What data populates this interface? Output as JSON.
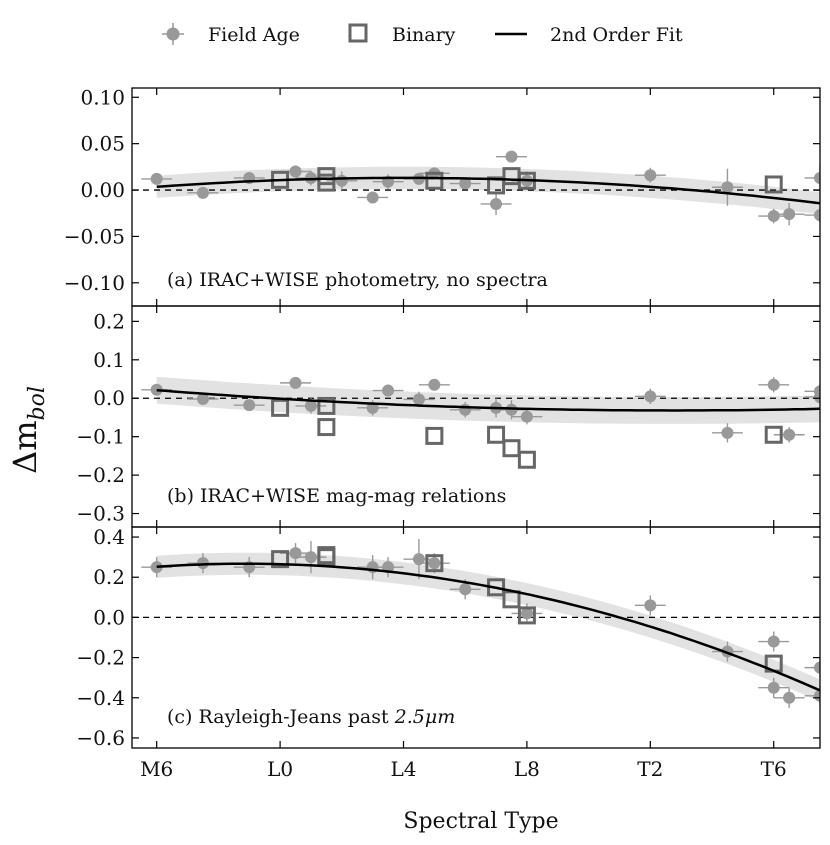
{
  "chart_data": {
    "type": "scatter",
    "legend": {
      "placement": "top",
      "entries": [
        {
          "key": "field",
          "label": "Field Age",
          "marker": "filled-circle-with-errorbars",
          "color": "#999999"
        },
        {
          "key": "binary",
          "label": "Binary",
          "marker": "open-square",
          "color": "#666666"
        },
        {
          "key": "fit",
          "label": "2nd Order Fit",
          "marker": "line",
          "color": "#000000"
        }
      ]
    },
    "xlabel": "Spectral Type",
    "ylabel": "Δm_bol",
    "ylabel_main": "Δm",
    "ylabel_sub": "bol",
    "xlim": [
      -0.8,
      21.5
    ],
    "xticks": [
      {
        "value": 0,
        "label": "M6"
      },
      {
        "value": 4,
        "label": "L0"
      },
      {
        "value": 8,
        "label": "L4"
      },
      {
        "value": 12,
        "label": "L8"
      },
      {
        "value": 16,
        "label": "T2"
      },
      {
        "value": 20,
        "label": "T6"
      }
    ],
    "colors": {
      "field": "#999999",
      "binary_edge": "#666666",
      "fit": "#000000",
      "band": "#e2e2e2",
      "zero_line": "#000000"
    },
    "panels": [
      {
        "id": "a",
        "label": "(a) IRAC+WISE photometry, no spectra",
        "ylim": [
          -0.125,
          0.11
        ],
        "yticks": [
          {
            "value": 0.1,
            "label": "0.10"
          },
          {
            "value": 0.05,
            "label": "0.05"
          },
          {
            "value": 0.0,
            "label": "0.00"
          },
          {
            "value": -0.05,
            "label": "−0.05"
          },
          {
            "value": -0.1,
            "label": "−0.10"
          }
        ],
        "fit": {
          "a": 0.0035,
          "b": 0.0024,
          "c": -0.00015,
          "band": 0.012,
          "xrange": [
            0,
            21.5
          ]
        },
        "points": [
          {
            "x": 0.0,
            "y": 0.012,
            "xerr": 0.5,
            "yerr": 0.005
          },
          {
            "x": 1.5,
            "y": -0.003,
            "xerr": 0.5,
            "yerr": 0.004
          },
          {
            "x": 3.0,
            "y": 0.013,
            "xerr": 0.5,
            "yerr": 0.005
          },
          {
            "x": 4.5,
            "y": 0.02,
            "xerr": 0.5,
            "yerr": 0.004
          },
          {
            "x": 5.0,
            "y": 0.013,
            "xerr": 0.5,
            "yerr": 0.008
          },
          {
            "x": 6.0,
            "y": 0.01,
            "xerr": 0.5,
            "yerr": 0.01
          },
          {
            "x": 7.0,
            "y": -0.008,
            "xerr": 0.5,
            "yerr": 0.005
          },
          {
            "x": 7.5,
            "y": 0.009,
            "xerr": 0.5,
            "yerr": 0.008
          },
          {
            "x": 8.5,
            "y": 0.012,
            "xerr": 0.5,
            "yerr": 0.006
          },
          {
            "x": 9.0,
            "y": 0.018,
            "xerr": 0.5,
            "yerr": 0.006
          },
          {
            "x": 10.0,
            "y": 0.007,
            "xerr": 0.5,
            "yerr": 0.005
          },
          {
            "x": 11.0,
            "y": -0.015,
            "xerr": 0.5,
            "yerr": 0.012
          },
          {
            "x": 11.5,
            "y": 0.036,
            "xerr": 0.5,
            "yerr": 0.006
          },
          {
            "x": 12.0,
            "y": 0.01,
            "xerr": 0.5,
            "yerr": 0.01
          },
          {
            "x": 16.0,
            "y": 0.016,
            "xerr": 0.5,
            "yerr": 0.008
          },
          {
            "x": 18.5,
            "y": 0.003,
            "xerr": 0.5,
            "yerr": 0.02
          },
          {
            "x": 20.0,
            "y": -0.028,
            "xerr": 0.5,
            "yerr": 0.008
          },
          {
            "x": 20.5,
            "y": -0.026,
            "xerr": 0.5,
            "yerr": 0.012
          },
          {
            "x": 21.5,
            "y": -0.027,
            "xerr": 0.5,
            "yerr": 0.008
          },
          {
            "x": 21.5,
            "y": 0.013,
            "xerr": 0.5,
            "yerr": 0.015
          }
        ],
        "binaries": [
          {
            "x": 4.0,
            "y": 0.011
          },
          {
            "x": 5.5,
            "y": 0.015
          },
          {
            "x": 5.5,
            "y": 0.008
          },
          {
            "x": 9.0,
            "y": 0.01
          },
          {
            "x": 11.0,
            "y": 0.005
          },
          {
            "x": 11.5,
            "y": 0.015
          },
          {
            "x": 12.0,
            "y": 0.01
          },
          {
            "x": 20.0,
            "y": 0.006
          }
        ]
      },
      {
        "id": "b",
        "label": "(b) IRAC+WISE mag-mag relations",
        "ylim": [
          -0.335,
          0.24
        ],
        "yticks": [
          {
            "value": 0.2,
            "label": "0.2"
          },
          {
            "value": 0.1,
            "label": "0.1"
          },
          {
            "value": 0.0,
            "label": "0.0"
          },
          {
            "value": -0.1,
            "label": "−0.1"
          },
          {
            "value": -0.2,
            "label": "−0.2"
          },
          {
            "value": -0.3,
            "label": "−0.3"
          }
        ],
        "fit": {
          "a": 0.021,
          "b": -0.0063,
          "c": 0.000188,
          "band": 0.035,
          "xrange": [
            0,
            21.5
          ]
        },
        "points": [
          {
            "x": 0.0,
            "y": 0.022,
            "xerr": 0.5,
            "yerr": 0.015
          },
          {
            "x": 1.5,
            "y": -0.002,
            "xerr": 0.5,
            "yerr": 0.012
          },
          {
            "x": 3.0,
            "y": -0.018,
            "xerr": 0.5,
            "yerr": 0.012
          },
          {
            "x": 4.5,
            "y": 0.04,
            "xerr": 0.5,
            "yerr": 0.015
          },
          {
            "x": 5.0,
            "y": -0.02,
            "xerr": 0.5,
            "yerr": 0.02
          },
          {
            "x": 7.0,
            "y": -0.025,
            "xerr": 0.5,
            "yerr": 0.02
          },
          {
            "x": 7.5,
            "y": 0.02,
            "xerr": 0.5,
            "yerr": 0.015
          },
          {
            "x": 8.5,
            "y": -0.003,
            "xerr": 0.5,
            "yerr": 0.02
          },
          {
            "x": 9.0,
            "y": 0.035,
            "xerr": 0.5,
            "yerr": 0.015
          },
          {
            "x": 10.0,
            "y": -0.03,
            "xerr": 0.5,
            "yerr": 0.02
          },
          {
            "x": 11.0,
            "y": -0.025,
            "xerr": 0.5,
            "yerr": 0.025
          },
          {
            "x": 11.5,
            "y": -0.03,
            "xerr": 0.5,
            "yerr": 0.025
          },
          {
            "x": 12.0,
            "y": -0.048,
            "xerr": 0.5,
            "yerr": 0.02
          },
          {
            "x": 16.0,
            "y": 0.005,
            "xerr": 0.5,
            "yerr": 0.02
          },
          {
            "x": 18.5,
            "y": -0.09,
            "xerr": 0.5,
            "yerr": 0.025
          },
          {
            "x": 20.0,
            "y": 0.035,
            "xerr": 0.5,
            "yerr": 0.02
          },
          {
            "x": 20.5,
            "y": -0.095,
            "xerr": 0.5,
            "yerr": 0.02
          },
          {
            "x": 21.5,
            "y": 0.018,
            "xerr": 0.5,
            "yerr": 0.02
          },
          {
            "x": 21.5,
            "y": 0.003,
            "xerr": 0.5,
            "yerr": 0.02
          }
        ],
        "binaries": [
          {
            "x": 4.0,
            "y": -0.025
          },
          {
            "x": 5.5,
            "y": -0.02
          },
          {
            "x": 5.5,
            "y": -0.075
          },
          {
            "x": 9.0,
            "y": -0.098
          },
          {
            "x": 11.0,
            "y": -0.095
          },
          {
            "x": 11.5,
            "y": -0.13
          },
          {
            "x": 12.0,
            "y": -0.16
          },
          {
            "x": 20.0,
            "y": -0.095
          }
        ]
      },
      {
        "id": "c",
        "label": "(c) Rayleigh-Jeans past",
        "label_math": "2.5μm",
        "ylim": [
          -0.65,
          0.45
        ],
        "yticks": [
          {
            "value": 0.4,
            "label": "0.4"
          },
          {
            "value": 0.2,
            "label": "0.2"
          },
          {
            "value": 0.0,
            "label": "0.0"
          },
          {
            "value": -0.2,
            "label": "−0.2"
          },
          {
            "value": -0.4,
            "label": "−0.4"
          },
          {
            "value": -0.6,
            "label": "−0.6"
          }
        ],
        "fit": {
          "a": 0.252,
          "b": 0.0105,
          "c": -0.00182,
          "band": 0.055,
          "xrange": [
            0,
            21.5
          ]
        },
        "points": [
          {
            "x": 0.0,
            "y": 0.25,
            "xerr": 0.5,
            "yerr": 0.05
          },
          {
            "x": 1.5,
            "y": 0.27,
            "xerr": 0.5,
            "yerr": 0.05
          },
          {
            "x": 3.0,
            "y": 0.25,
            "xerr": 0.5,
            "yerr": 0.05
          },
          {
            "x": 4.5,
            "y": 0.32,
            "xerr": 0.5,
            "yerr": 0.05
          },
          {
            "x": 5.0,
            "y": 0.3,
            "xerr": 0.5,
            "yerr": 0.08
          },
          {
            "x": 7.0,
            "y": 0.25,
            "xerr": 0.5,
            "yerr": 0.06
          },
          {
            "x": 7.5,
            "y": 0.25,
            "xerr": 0.5,
            "yerr": 0.05
          },
          {
            "x": 8.5,
            "y": 0.29,
            "xerr": 0.5,
            "yerr": 0.1
          },
          {
            "x": 9.0,
            "y": 0.27,
            "xerr": 0.5,
            "yerr": 0.05
          },
          {
            "x": 10.0,
            "y": 0.14,
            "xerr": 0.5,
            "yerr": 0.05
          },
          {
            "x": 12.0,
            "y": 0.02,
            "xerr": 0.5,
            "yerr": 0.05
          },
          {
            "x": 16.0,
            "y": 0.06,
            "xerr": 0.5,
            "yerr": 0.05
          },
          {
            "x": 18.5,
            "y": -0.17,
            "xerr": 0.5,
            "yerr": 0.05
          },
          {
            "x": 20.0,
            "y": -0.12,
            "xerr": 0.5,
            "yerr": 0.05
          },
          {
            "x": 20.0,
            "y": -0.35,
            "xerr": 0.5,
            "yerr": 0.05
          },
          {
            "x": 20.5,
            "y": -0.4,
            "xerr": 0.5,
            "yerr": 0.05
          },
          {
            "x": 21.5,
            "y": -0.25,
            "xerr": 0.5,
            "yerr": 0.05
          },
          {
            "x": 21.5,
            "y": -0.39,
            "xerr": 0.5,
            "yerr": 0.05
          }
        ],
        "binaries": [
          {
            "x": 4.0,
            "y": 0.29
          },
          {
            "x": 5.5,
            "y": 0.31
          },
          {
            "x": 5.5,
            "y": 0.3
          },
          {
            "x": 9.0,
            "y": 0.27
          },
          {
            "x": 11.0,
            "y": 0.15
          },
          {
            "x": 11.5,
            "y": 0.09
          },
          {
            "x": 12.0,
            "y": 0.01
          },
          {
            "x": 20.0,
            "y": -0.23
          }
        ]
      }
    ]
  }
}
